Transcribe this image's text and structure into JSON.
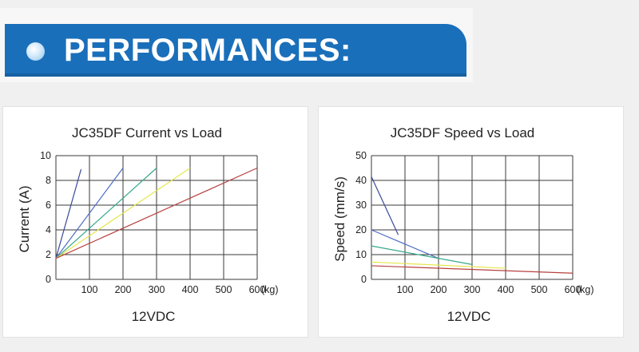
{
  "banner": {
    "title": "PERFORMANCES:"
  },
  "chart_data": [
    {
      "type": "line",
      "title": "JC35DF Current vs Load",
      "ylabel": "Current (A)",
      "xlabel": "",
      "x_unit": "(kg)",
      "footer": "12VDC",
      "xlim": [
        0,
        600
      ],
      "ylim": [
        0,
        10
      ],
      "x_ticks": [
        "100",
        "200",
        "300",
        "400",
        "500",
        "600"
      ],
      "y_ticks": [
        "0",
        "2",
        "4",
        "6",
        "8",
        "10"
      ],
      "grid": true,
      "series": [
        {
          "color": "#3b4a99",
          "points": [
            [
              0,
              1.7
            ],
            [
              75,
              8.9
            ]
          ]
        },
        {
          "color": "#4e6cc4",
          "points": [
            [
              0,
              1.7
            ],
            [
              200,
              9.0
            ]
          ]
        },
        {
          "color": "#37a88a",
          "points": [
            [
              0,
              1.7
            ],
            [
              300,
              9.0
            ]
          ]
        },
        {
          "color": "#e6e64c",
          "points": [
            [
              0,
              1.7
            ],
            [
              400,
              9.0
            ]
          ]
        },
        {
          "color": "#b6413f",
          "points": [
            [
              0,
              1.7
            ],
            [
              600,
              9.0
            ]
          ]
        }
      ]
    },
    {
      "type": "line",
      "title": "JC35DF Speed vs Load",
      "ylabel": "Speed (mm/s)",
      "xlabel": "",
      "x_unit": "(kg)",
      "footer": "12VDC",
      "xlim": [
        0,
        600
      ],
      "ylim": [
        0,
        50
      ],
      "x_ticks": [
        "100",
        "200",
        "300",
        "400",
        "500",
        "600"
      ],
      "y_ticks": [
        "0",
        "10",
        "20",
        "30",
        "40",
        "50"
      ],
      "grid": true,
      "series": [
        {
          "color": "#3b4a99",
          "points": [
            [
              0,
              41.5
            ],
            [
              80,
              18.0
            ]
          ]
        },
        {
          "color": "#4e6cc4",
          "points": [
            [
              0,
              20.0
            ],
            [
              200,
              8.5
            ]
          ]
        },
        {
          "color": "#37a88a",
          "points": [
            [
              0,
              13.5
            ],
            [
              300,
              6.0
            ]
          ]
        },
        {
          "color": "#e6e64c",
          "points": [
            [
              0,
              7.0
            ],
            [
              400,
              4.5
            ]
          ]
        },
        {
          "color": "#b6413f",
          "points": [
            [
              0,
              5.5
            ],
            [
              600,
              2.5
            ]
          ]
        }
      ]
    }
  ]
}
